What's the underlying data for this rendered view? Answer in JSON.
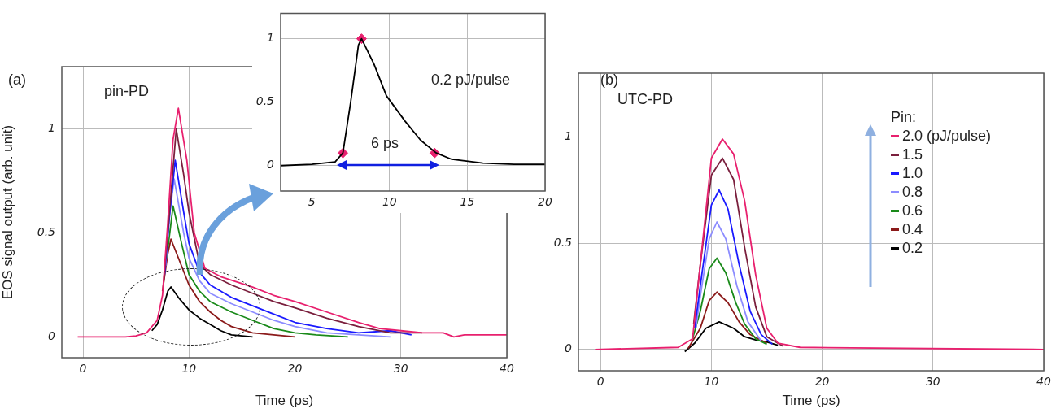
{
  "chart_data": [
    {
      "type": "line",
      "xlabel": "Time (ps)",
      "ylabel": "EOS signal output (arb. unit)",
      "annotations": [
        "(a)",
        "pin-PD"
      ],
      "xlim": [
        -2,
        40
      ],
      "ylim": [
        -0.1,
        1.3
      ],
      "xticks": [
        0,
        10,
        20,
        30,
        40
      ],
      "yticks": [
        0,
        0.5,
        1
      ],
      "grid": true,
      "series": [
        {
          "color": "#e8206e",
          "x": [
            -0.5,
            4,
            5,
            6,
            7,
            7.5,
            8,
            8.5,
            9,
            9.8,
            10.5,
            11.5,
            13,
            16,
            18,
            20,
            23,
            26,
            28,
            30,
            32,
            34,
            35,
            36,
            40
          ],
          "values": [
            0,
            0,
            0.005,
            0.02,
            0.08,
            0.2,
            0.55,
            0.95,
            1.1,
            0.85,
            0.5,
            0.33,
            0.29,
            0.24,
            0.2,
            0.17,
            0.12,
            0.07,
            0.04,
            0.03,
            0.02,
            0.02,
            0,
            0.01,
            0.01
          ]
        },
        {
          "color": "#7a1f3d",
          "x": [
            7.6,
            8,
            8.8,
            9.5,
            10,
            11,
            12,
            14,
            16,
            18,
            20,
            23,
            26,
            29,
            32
          ],
          "values": [
            0.26,
            0.5,
            1,
            0.78,
            0.6,
            0.35,
            0.3,
            0.25,
            0.21,
            0.17,
            0.14,
            0.09,
            0.05,
            0.02,
            0.02
          ]
        },
        {
          "color": "#1a1aff",
          "x": [
            7.7,
            8.1,
            8.7,
            9.5,
            10,
            11,
            12,
            14,
            16,
            18,
            20,
            23,
            26,
            29,
            31
          ],
          "values": [
            0.3,
            0.55,
            0.85,
            0.6,
            0.45,
            0.31,
            0.25,
            0.19,
            0.15,
            0.11,
            0.07,
            0.04,
            0.02,
            0.03,
            0.01
          ]
        },
        {
          "color": "#8c8cff",
          "x": [
            7.8,
            8.2,
            8.6,
            9.5,
            10,
            11,
            12,
            14,
            16,
            18,
            20,
            23,
            26,
            29
          ],
          "values": [
            0.34,
            0.6,
            0.76,
            0.5,
            0.38,
            0.27,
            0.21,
            0.16,
            0.12,
            0.08,
            0.05,
            0.02,
            0.01,
            0
          ]
        },
        {
          "color": "#1a8a1a",
          "x": [
            7.9,
            8.5,
            9.3,
            10,
            11,
            12,
            14,
            16,
            18,
            20,
            22,
            25
          ],
          "values": [
            0.38,
            0.63,
            0.45,
            0.3,
            0.22,
            0.17,
            0.12,
            0.08,
            0.04,
            0.02,
            0.01,
            0
          ]
        },
        {
          "color": "#8b1a1a",
          "x": [
            7.5,
            8,
            8.3,
            9,
            10,
            11,
            12,
            13,
            14,
            16,
            18,
            20
          ],
          "values": [
            0.22,
            0.4,
            0.47,
            0.38,
            0.25,
            0.17,
            0.12,
            0.08,
            0.05,
            0.02,
            0.01,
            0
          ]
        },
        {
          "color": "#000000",
          "x": [
            6.5,
            7,
            7.5,
            8,
            8.3,
            9,
            10,
            11,
            12,
            13,
            14,
            16
          ],
          "values": [
            0.03,
            0.06,
            0.13,
            0.22,
            0.24,
            0.19,
            0.13,
            0.09,
            0.06,
            0.03,
            0.01,
            0
          ]
        }
      ]
    },
    {
      "type": "line",
      "annotations": [
        "0.2 pJ/pulse",
        "6 ps"
      ],
      "xlim": [
        3,
        20
      ],
      "ylim": [
        -0.2,
        1.2
      ],
      "xticks": [
        5,
        10,
        15,
        20
      ],
      "yticks": [
        0,
        0.5,
        1
      ],
      "grid": true,
      "series": [
        {
          "color": "#000000",
          "x": [
            3,
            5,
            6.5,
            7,
            7.5,
            8,
            8.2,
            9,
            9.8,
            11,
            12,
            13,
            14,
            16,
            18,
            20
          ],
          "values": [
            0,
            0.01,
            0.03,
            0.1,
            0.5,
            0.95,
            1,
            0.8,
            0.55,
            0.35,
            0.2,
            0.1,
            0.05,
            0.02,
            0.01,
            0.01
          ]
        },
        {
          "type": "scatter",
          "color": "#e8206e",
          "marker": "diamond",
          "x": [
            7,
            8.2,
            12.9
          ],
          "values": [
            0.1,
            1,
            0.1
          ]
        }
      ]
    },
    {
      "type": "line",
      "xlabel": "Time (ps)",
      "annotations": [
        "(b)",
        "UTC-PD"
      ],
      "legend": "top right",
      "legend_title": "Pin:",
      "xlim": [
        -2,
        40
      ],
      "ylim": [
        -0.1,
        1.3
      ],
      "xticks": [
        0,
        10,
        20,
        30,
        40
      ],
      "yticks": [
        0,
        0.5,
        1
      ],
      "grid": true,
      "series": [
        {
          "name": "2.0 (pJ/pulse)",
          "color": "#e8206e",
          "x": [
            -0.5,
            7,
            8.3,
            9.2,
            10,
            11,
            12,
            13,
            14,
            15,
            16,
            18,
            40
          ],
          "values": [
            0,
            0.01,
            0.05,
            0.5,
            0.9,
            0.99,
            0.92,
            0.7,
            0.35,
            0.1,
            0.03,
            0.01,
            0
          ]
        },
        {
          "name": "1.5",
          "color": "#7a1f3d",
          "x": [
            8.4,
            9,
            10,
            11,
            12,
            13,
            14,
            15,
            16.5
          ],
          "values": [
            0.12,
            0.4,
            0.82,
            0.9,
            0.8,
            0.48,
            0.2,
            0.06,
            0.015
          ]
        },
        {
          "name": "1.0",
          "color": "#1a1aff",
          "x": [
            8.5,
            9,
            10,
            10.7,
            11.5,
            12.5,
            13.5,
            14.5,
            15.5
          ],
          "values": [
            0.1,
            0.3,
            0.68,
            0.75,
            0.66,
            0.4,
            0.18,
            0.07,
            0.025
          ]
        },
        {
          "name": "0.8",
          "color": "#8c8cff",
          "x": [
            8.6,
            9,
            9.8,
            10.5,
            11.3,
            12.3,
            13.3,
            14.5
          ],
          "values": [
            0.1,
            0.25,
            0.52,
            0.6,
            0.52,
            0.3,
            0.13,
            0.04
          ]
        },
        {
          "name": "0.6",
          "color": "#1a8a1a",
          "x": [
            8.3,
            9,
            9.8,
            10.5,
            11.3,
            12.2,
            13,
            14,
            15
          ],
          "values": [
            0.05,
            0.18,
            0.38,
            0.43,
            0.36,
            0.22,
            0.12,
            0.05,
            0.025
          ]
        },
        {
          "name": "0.4",
          "color": "#8b1a1a",
          "x": [
            7.9,
            9,
            9.8,
            10.5,
            11.5,
            12.5,
            13.5,
            15
          ],
          "values": [
            0.005,
            0.1,
            0.23,
            0.27,
            0.22,
            0.13,
            0.07,
            0.03
          ]
        },
        {
          "name": "0.2",
          "color": "#000000",
          "x": [
            7.6,
            8.5,
            9.5,
            10.7,
            12,
            13,
            14,
            15,
            16
          ],
          "values": [
            -0.01,
            0.03,
            0.1,
            0.13,
            0.1,
            0.06,
            0.045,
            0.035,
            0.02
          ]
        }
      ]
    }
  ]
}
